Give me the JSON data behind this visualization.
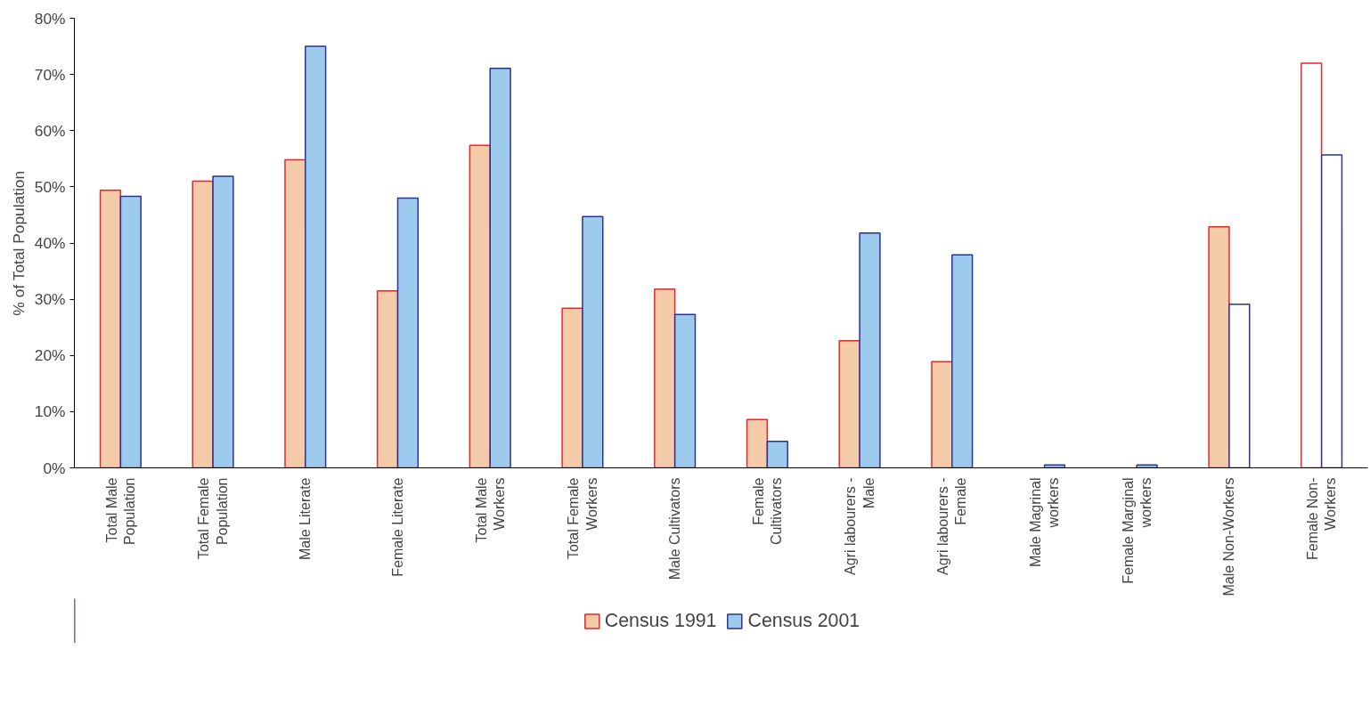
{
  "chart_data": {
    "type": "bar",
    "ylabel": "% of Total Population",
    "categories": [
      "Total Male Population",
      "Total Female Population",
      "Male Literate",
      "Female Literate",
      "Total Male Workers",
      "Total Female Workers",
      "Male Cultivators",
      "Female Cultivators",
      "Agri labourers - Male",
      "Agri labourers - Female",
      "Male Magrinal workers",
      "Female Marginal workers",
      "Male Non-Workers",
      "Female Non-Workers"
    ],
    "series": [
      {
        "name": "Census 1991",
        "color": "#f3cba8",
        "colors": [
          "#f3cba8",
          "#f3cba8",
          "#f3cba8",
          "#f3cba8",
          "#f3cba8",
          "#f3cba8",
          "#f3cba8",
          "#f3cba8",
          "#f3cba8",
          "#f3cba8",
          "#f3cba8",
          "#f3cba8",
          "#f3cba8",
          "#ffffff"
        ],
        "values": [
          49.4,
          51.0,
          54.8,
          31.5,
          57.4,
          28.4,
          31.8,
          8.6,
          22.6,
          18.9,
          null,
          null,
          42.9,
          72.0
        ]
      },
      {
        "name": "Census 2001",
        "color": "#9ccbee",
        "colors": [
          "#9ccbee",
          "#9ccbee",
          "#9ccbee",
          "#9ccbee",
          "#9ccbee",
          "#9ccbee",
          "#9ccbee",
          "#9ccbee",
          "#9ccbee",
          "#9ccbee",
          "#9ccbee",
          "#9ccbee",
          "#ffffff",
          "#ffffff"
        ],
        "values": [
          48.3,
          51.9,
          75.0,
          48.0,
          71.1,
          44.7,
          27.3,
          4.7,
          41.8,
          37.9,
          0.5,
          0.5,
          29.1,
          55.7
        ]
      }
    ],
    "ylim": [
      0,
      80
    ],
    "yticks": [
      {
        "value": 0,
        "label": "0%"
      },
      {
        "value": 10,
        "label": "10%"
      },
      {
        "value": 20,
        "label": "20%"
      },
      {
        "value": 30,
        "label": "30%"
      },
      {
        "value": 40,
        "label": "40%"
      },
      {
        "value": 50,
        "label": "50%"
      },
      {
        "value": 60,
        "label": "60%"
      },
      {
        "value": 70,
        "label": "70%"
      },
      {
        "value": 80,
        "label": "80%"
      }
    ],
    "grid": false,
    "legend": "bottom"
  }
}
